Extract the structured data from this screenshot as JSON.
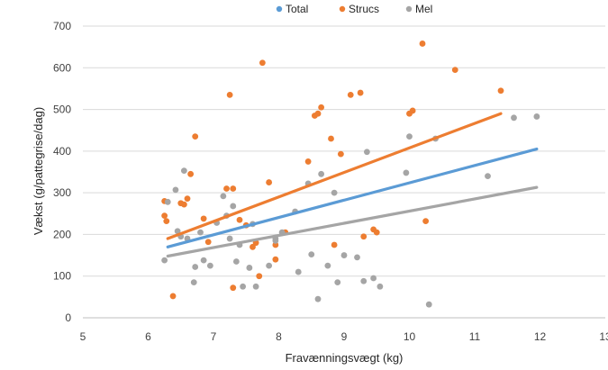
{
  "chart_data": {
    "type": "scatter",
    "xlabel": "Fravænningsvægt (kg)",
    "ylabel": "Vækst (g/pattegrise/dag)",
    "xlim": [
      5,
      13
    ],
    "ylim": [
      0,
      700
    ],
    "xticks": [
      "5",
      "6",
      "7",
      "8",
      "9",
      "10",
      "11",
      "12",
      "13"
    ],
    "yticks": [
      "0",
      "100",
      "200",
      "300",
      "400",
      "500",
      "600",
      "700"
    ],
    "grid": "horizontal",
    "legend_position": "top",
    "series": [
      {
        "name": "Total",
        "color": "#5b9bd5",
        "points": [],
        "trendline": [
          [
            6.3,
            170
          ],
          [
            11.95,
            405
          ]
        ]
      },
      {
        "name": "Strucs",
        "color": "#ed7d31",
        "points": [
          [
            6.25,
            280
          ],
          [
            6.25,
            245
          ],
          [
            6.28,
            232
          ],
          [
            6.38,
            52
          ],
          [
            6.5,
            275
          ],
          [
            6.55,
            272
          ],
          [
            6.6,
            286
          ],
          [
            6.65,
            345
          ],
          [
            6.72,
            435
          ],
          [
            6.85,
            238
          ],
          [
            6.92,
            182
          ],
          [
            7.2,
            310
          ],
          [
            7.25,
            535
          ],
          [
            7.3,
            310
          ],
          [
            7.4,
            235
          ],
          [
            7.5,
            222
          ],
          [
            7.6,
            170
          ],
          [
            7.65,
            180
          ],
          [
            7.75,
            612
          ],
          [
            7.85,
            325
          ],
          [
            7.95,
            175
          ],
          [
            7.95,
            140
          ],
          [
            8.1,
            205
          ],
          [
            8.45,
            375
          ],
          [
            8.55,
            485
          ],
          [
            8.6,
            490
          ],
          [
            8.65,
            505
          ],
          [
            8.8,
            430
          ],
          [
            8.85,
            175
          ],
          [
            8.95,
            393
          ],
          [
            9.1,
            535
          ],
          [
            9.25,
            540
          ],
          [
            9.3,
            195
          ],
          [
            9.45,
            212
          ],
          [
            9.5,
            205
          ],
          [
            10.0,
            490
          ],
          [
            10.05,
            497
          ],
          [
            10.2,
            658
          ],
          [
            10.25,
            232
          ],
          [
            10.7,
            595
          ],
          [
            11.4,
            545
          ],
          [
            7.3,
            72
          ],
          [
            7.7,
            100
          ]
        ],
        "trendline": [
          [
            6.3,
            190
          ],
          [
            11.4,
            490
          ]
        ]
      },
      {
        "name": "Mel",
        "color": "#a5a5a5",
        "points": [
          [
            6.25,
            138
          ],
          [
            6.3,
            278
          ],
          [
            6.42,
            307
          ],
          [
            6.45,
            208
          ],
          [
            6.5,
            195
          ],
          [
            6.55,
            353
          ],
          [
            6.6,
            190
          ],
          [
            6.7,
            85
          ],
          [
            6.72,
            122
          ],
          [
            6.8,
            205
          ],
          [
            6.85,
            138
          ],
          [
            6.95,
            125
          ],
          [
            7.05,
            228
          ],
          [
            7.15,
            292
          ],
          [
            7.2,
            245
          ],
          [
            7.25,
            190
          ],
          [
            7.3,
            268
          ],
          [
            7.35,
            135
          ],
          [
            7.4,
            175
          ],
          [
            7.45,
            75
          ],
          [
            7.55,
            120
          ],
          [
            7.6,
            225
          ],
          [
            7.65,
            75
          ],
          [
            7.85,
            125
          ],
          [
            7.95,
            190
          ],
          [
            7.95,
            185
          ],
          [
            8.05,
            205
          ],
          [
            8.25,
            255
          ],
          [
            8.3,
            110
          ],
          [
            8.45,
            322
          ],
          [
            8.5,
            152
          ],
          [
            8.6,
            45
          ],
          [
            8.65,
            345
          ],
          [
            8.75,
            125
          ],
          [
            8.85,
            300
          ],
          [
            8.9,
            85
          ],
          [
            9.0,
            150
          ],
          [
            9.2,
            145
          ],
          [
            9.3,
            88
          ],
          [
            9.35,
            398
          ],
          [
            9.45,
            95
          ],
          [
            9.55,
            75
          ],
          [
            9.95,
            348
          ],
          [
            10.0,
            435
          ],
          [
            10.3,
            32
          ],
          [
            10.4,
            430
          ],
          [
            11.2,
            340
          ],
          [
            11.6,
            480
          ],
          [
            11.95,
            483
          ]
        ],
        "trendline": [
          [
            6.3,
            148
          ],
          [
            11.95,
            313
          ]
        ]
      }
    ]
  }
}
